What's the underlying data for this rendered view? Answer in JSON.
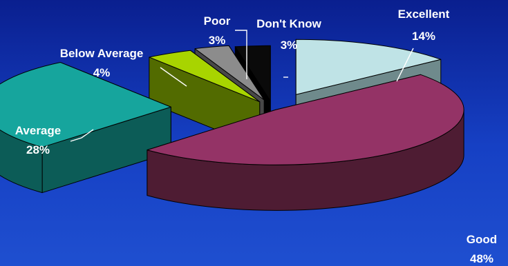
{
  "chart_data": {
    "type": "pie",
    "style": "3d-exploded",
    "slices": [
      {
        "category": "Excellent",
        "value": 14,
        "label": "14%",
        "top_color": "#bfe3e6",
        "side_color": "#6f8a8c"
      },
      {
        "category": "Good",
        "value": 48,
        "label": "48%",
        "top_color": "#943366",
        "side_color": "#4e1c33"
      },
      {
        "category": "Average",
        "value": 28,
        "label": "28%",
        "top_color": "#16a59d",
        "side_color": "#0c5c57"
      },
      {
        "category": "Below Average",
        "value": 4,
        "label": "4%",
        "top_color": "#a8d400",
        "side_color": "#526b00"
      },
      {
        "category": "Poor",
        "value": 3,
        "label": "3%",
        "top_color": "#8c8c8c",
        "side_color": "#484848"
      },
      {
        "category": "Don't Know",
        "value": 3,
        "label": "3%",
        "top_color": "#0a0a0a",
        "side_color": "#000000"
      }
    ]
  }
}
